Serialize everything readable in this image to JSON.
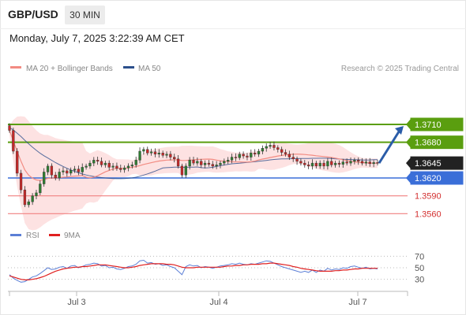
{
  "header": {
    "symbol": "GBP/USD",
    "timeframe": "30 MIN",
    "datetime": "Monday, July 7, 2025 3:22:39 AM CET"
  },
  "legend": {
    "ma20": "MA 20 + Bollinger Bands",
    "ma50": "MA 50",
    "ma20_color": "#f28b82",
    "ma50_color": "#2c4f8c"
  },
  "credit": "Research © 2025 Trading Central",
  "colors": {
    "candle_up": "#2e7d32",
    "candle_down": "#c62828",
    "resistance": "#5a9e0f",
    "pivot": "#3a6ed8",
    "support": "#f08080",
    "arrow": "#2a5ca8",
    "price_tag": "#222222"
  },
  "chart_data": [
    {
      "type": "candlestick",
      "y_axis_side": "right",
      "current_price": "1.3645",
      "x_tick_labels": [
        "Jul 3",
        "Jul 4",
        "Jul 7"
      ],
      "levels": {
        "resistance": [
          "1.3710",
          "1.3680"
        ],
        "pivot": "1.3620",
        "support": [
          "1.3590",
          "1.3560"
        ]
      },
      "levels_num": {
        "resistance": [
          1.371,
          1.368
        ],
        "pivot": 1.362,
        "support": [
          1.359,
          1.356
        ]
      },
      "forecast_arrow": {
        "from": 1.3645,
        "to": 1.371
      },
      "closes": [
        1.37,
        1.3665,
        1.3628,
        1.36,
        1.3575,
        1.358,
        1.359,
        1.3595,
        1.361,
        1.363,
        1.364,
        1.3625,
        1.362,
        1.363,
        1.3632,
        1.3628,
        1.3633,
        1.3635,
        1.363,
        1.3638,
        1.364,
        1.3645,
        1.365,
        1.3648,
        1.3642,
        1.3645,
        1.3638,
        1.364,
        1.3636,
        1.3634,
        1.3637,
        1.364,
        1.3642,
        1.365,
        1.3665,
        1.3668,
        1.3662,
        1.3664,
        1.366,
        1.3662,
        1.3658,
        1.366,
        1.3655,
        1.3652,
        1.364,
        1.3625,
        1.364,
        1.365,
        1.3645,
        1.3648,
        1.3642,
        1.3645,
        1.3643,
        1.364,
        1.3642,
        1.3645,
        1.3648,
        1.365,
        1.3655,
        1.3654,
        1.366,
        1.3657,
        1.3655,
        1.3662,
        1.366,
        1.3665,
        1.367,
        1.3673,
        1.3675,
        1.3671,
        1.3668,
        1.3663,
        1.366,
        1.3655,
        1.3652,
        1.3648,
        1.3645,
        1.3642,
        1.364,
        1.3645,
        1.364,
        1.3645,
        1.364,
        1.3648,
        1.3642,
        1.3645,
        1.3643,
        1.3647,
        1.3645,
        1.3648,
        1.365,
        1.3648,
        1.3645,
        1.3647,
        1.3644,
        1.3646,
        1.3645
      ]
    },
    {
      "type": "line",
      "title": "RSI",
      "legend": [
        "RSI",
        "9MA"
      ],
      "y_ticks": [
        70,
        50,
        30
      ],
      "rsi_color": "#5c7fd6",
      "ma_color": "#e02020",
      "rsi": [
        38,
        32,
        28,
        25,
        26,
        30,
        34,
        36,
        40,
        45,
        50,
        47,
        48,
        51,
        52,
        49,
        53,
        54,
        50,
        52,
        55,
        56,
        58,
        57,
        53,
        54,
        50,
        51,
        48,
        47,
        49,
        52,
        53,
        56,
        62,
        63,
        58,
        59,
        56,
        57,
        54,
        55,
        52,
        50,
        44,
        38,
        52,
        55,
        53,
        54,
        50,
        52,
        51,
        49,
        51,
        53,
        54,
        55,
        57,
        56,
        58,
        56,
        55,
        57,
        56,
        58,
        60,
        62,
        61,
        58,
        55,
        52,
        50,
        48,
        46,
        44,
        42,
        44,
        42,
        46,
        42,
        46,
        44,
        49,
        46,
        48,
        47,
        50,
        49,
        52,
        53,
        51,
        49,
        51,
        48,
        49,
        48
      ],
      "ma9": [
        36,
        34,
        32,
        30,
        29,
        29,
        30,
        31,
        33,
        35,
        38,
        41,
        44,
        46,
        48,
        49,
        50,
        51,
        51,
        52,
        52,
        53,
        54,
        55,
        55,
        55,
        54,
        53,
        52,
        51,
        50,
        50,
        51,
        52,
        54,
        55,
        56,
        57,
        57,
        57,
        57,
        56,
        56,
        55,
        53,
        51,
        50,
        50,
        50,
        51,
        51,
        51,
        51,
        51,
        51,
        51,
        52,
        53,
        53,
        54,
        54,
        55,
        55,
        56,
        56,
        56,
        57,
        57,
        58,
        58,
        57,
        56,
        55,
        54,
        52,
        51,
        49,
        48,
        47,
        46,
        45,
        44,
        44,
        44,
        44,
        45,
        45,
        46,
        46,
        47,
        48,
        48,
        49,
        49,
        49,
        49,
        49
      ]
    }
  ]
}
